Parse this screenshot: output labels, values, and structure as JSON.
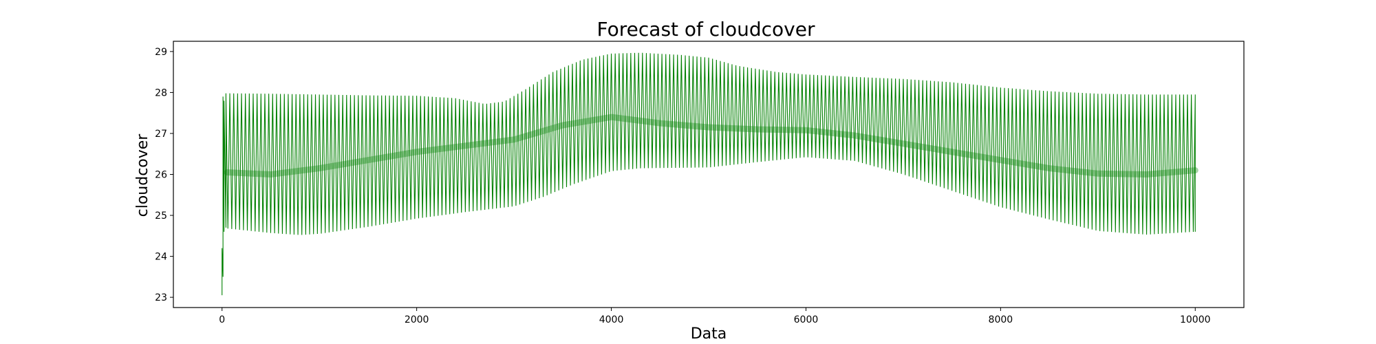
{
  "chart_data": {
    "type": "line",
    "title": "Forecast of cloudcover",
    "xlabel": "Data",
    "ylabel": "cloudcover",
    "xlim": [
      -500,
      10500
    ],
    "ylim": [
      22.75,
      29.25
    ],
    "xticks": [
      0,
      2000,
      4000,
      6000,
      8000,
      10000
    ],
    "yticks": [
      23,
      24,
      25,
      26,
      27,
      28,
      29
    ],
    "grid": false,
    "legend": "none",
    "series": [
      {
        "color": "#008000",
        "oscillation_period": 40,
        "x_range": [
          0,
          10000
        ],
        "start_values": [
          {
            "x": 0,
            "y": 23.05
          },
          {
            "x": 0,
            "y": 24.2
          },
          {
            "x": 10,
            "y": 23.5
          },
          {
            "x": 10,
            "y": 27.9
          },
          {
            "x": 20,
            "y": 24.6
          },
          {
            "x": 20,
            "y": 27.8
          },
          {
            "x": 40,
            "y": 24.7
          }
        ],
        "upper_envelope": [
          {
            "x": 50,
            "y": 27.98
          },
          {
            "x": 500,
            "y": 27.97
          },
          {
            "x": 1000,
            "y": 27.95
          },
          {
            "x": 1500,
            "y": 27.93
          },
          {
            "x": 2000,
            "y": 27.92
          },
          {
            "x": 2400,
            "y": 27.86
          },
          {
            "x": 2700,
            "y": 27.72
          },
          {
            "x": 2900,
            "y": 27.78
          },
          {
            "x": 3100,
            "y": 28.05
          },
          {
            "x": 3400,
            "y": 28.5
          },
          {
            "x": 3700,
            "y": 28.8
          },
          {
            "x": 4000,
            "y": 28.95
          },
          {
            "x": 4300,
            "y": 28.97
          },
          {
            "x": 4700,
            "y": 28.92
          },
          {
            "x": 5000,
            "y": 28.85
          },
          {
            "x": 5300,
            "y": 28.65
          },
          {
            "x": 5700,
            "y": 28.5
          },
          {
            "x": 6000,
            "y": 28.44
          },
          {
            "x": 6500,
            "y": 28.38
          },
          {
            "x": 7000,
            "y": 28.33
          },
          {
            "x": 7500,
            "y": 28.25
          },
          {
            "x": 8000,
            "y": 28.12
          },
          {
            "x": 8500,
            "y": 28.03
          },
          {
            "x": 9000,
            "y": 27.97
          },
          {
            "x": 9500,
            "y": 27.95
          },
          {
            "x": 10000,
            "y": 27.95
          }
        ],
        "lower_envelope": [
          {
            "x": 50,
            "y": 24.68
          },
          {
            "x": 500,
            "y": 24.57
          },
          {
            "x": 800,
            "y": 24.52
          },
          {
            "x": 1000,
            "y": 24.55
          },
          {
            "x": 1500,
            "y": 24.72
          },
          {
            "x": 2000,
            "y": 24.92
          },
          {
            "x": 2500,
            "y": 25.08
          },
          {
            "x": 3000,
            "y": 25.22
          },
          {
            "x": 3300,
            "y": 25.45
          },
          {
            "x": 3600,
            "y": 25.75
          },
          {
            "x": 4000,
            "y": 26.08
          },
          {
            "x": 4300,
            "y": 26.15
          },
          {
            "x": 5000,
            "y": 26.17
          },
          {
            "x": 5500,
            "y": 26.3
          },
          {
            "x": 6000,
            "y": 26.42
          },
          {
            "x": 6500,
            "y": 26.33
          },
          {
            "x": 7000,
            "y": 26.0
          },
          {
            "x": 7500,
            "y": 25.6
          },
          {
            "x": 8000,
            "y": 25.2
          },
          {
            "x": 8500,
            "y": 24.9
          },
          {
            "x": 9000,
            "y": 24.62
          },
          {
            "x": 9500,
            "y": 24.53
          },
          {
            "x": 10000,
            "y": 24.6
          }
        ],
        "center_line": [
          {
            "x": 50,
            "y": 26.05
          },
          {
            "x": 500,
            "y": 26.0
          },
          {
            "x": 1000,
            "y": 26.15
          },
          {
            "x": 1500,
            "y": 26.35
          },
          {
            "x": 2000,
            "y": 26.55
          },
          {
            "x": 2500,
            "y": 26.7
          },
          {
            "x": 3000,
            "y": 26.85
          },
          {
            "x": 3500,
            "y": 27.2
          },
          {
            "x": 4000,
            "y": 27.4
          },
          {
            "x": 4500,
            "y": 27.25
          },
          {
            "x": 5000,
            "y": 27.15
          },
          {
            "x": 5500,
            "y": 27.1
          },
          {
            "x": 6000,
            "y": 27.08
          },
          {
            "x": 6500,
            "y": 26.95
          },
          {
            "x": 7000,
            "y": 26.75
          },
          {
            "x": 7500,
            "y": 26.55
          },
          {
            "x": 8000,
            "y": 26.35
          },
          {
            "x": 8500,
            "y": 26.15
          },
          {
            "x": 9000,
            "y": 26.02
          },
          {
            "x": 9500,
            "y": 26.0
          },
          {
            "x": 10000,
            "y": 26.1
          }
        ],
        "end_values": [
          {
            "x": 10000,
            "y": 24.6
          },
          {
            "x": 10000,
            "y": 27.7
          }
        ]
      }
    ]
  }
}
